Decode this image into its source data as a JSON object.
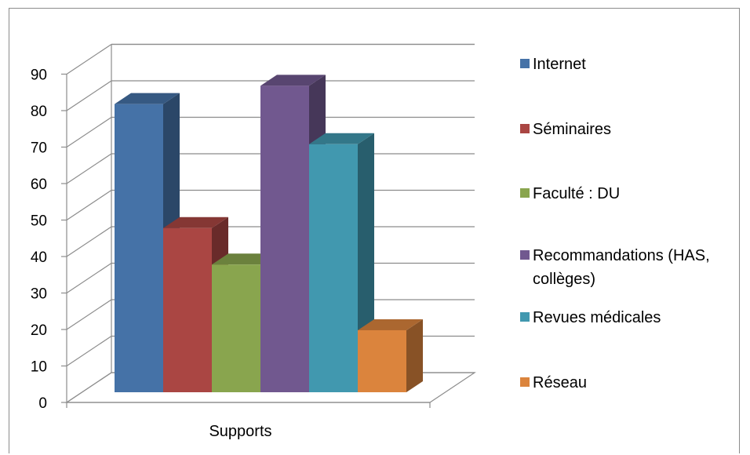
{
  "chart_data": {
    "type": "bar",
    "style": "3d-clustered-column",
    "categories": [
      "Supports"
    ],
    "series": [
      {
        "name": "Internet",
        "values": [
          79
        ],
        "color": "#4572a7"
      },
      {
        "name": "Séminaires",
        "values": [
          45
        ],
        "color": "#aa4643"
      },
      {
        "name": "Faculté : DU",
        "values": [
          35
        ],
        "color": "#89a54e"
      },
      {
        "name": "Recommandations (HAS, collèges)",
        "values": [
          84
        ],
        "color": "#71588f"
      },
      {
        "name": "Revues médicales",
        "values": [
          68
        ],
        "color": "#4198af"
      },
      {
        "name": "Réseau",
        "values": [
          17
        ],
        "color": "#db843d"
      }
    ],
    "title": "",
    "xlabel": "",
    "ylabel": "",
    "ylim": [
      0,
      90
    ],
    "yticks": [
      0,
      10,
      20,
      30,
      40,
      50,
      60,
      70,
      80,
      90
    ],
    "grid": true,
    "legend_position": "right"
  }
}
